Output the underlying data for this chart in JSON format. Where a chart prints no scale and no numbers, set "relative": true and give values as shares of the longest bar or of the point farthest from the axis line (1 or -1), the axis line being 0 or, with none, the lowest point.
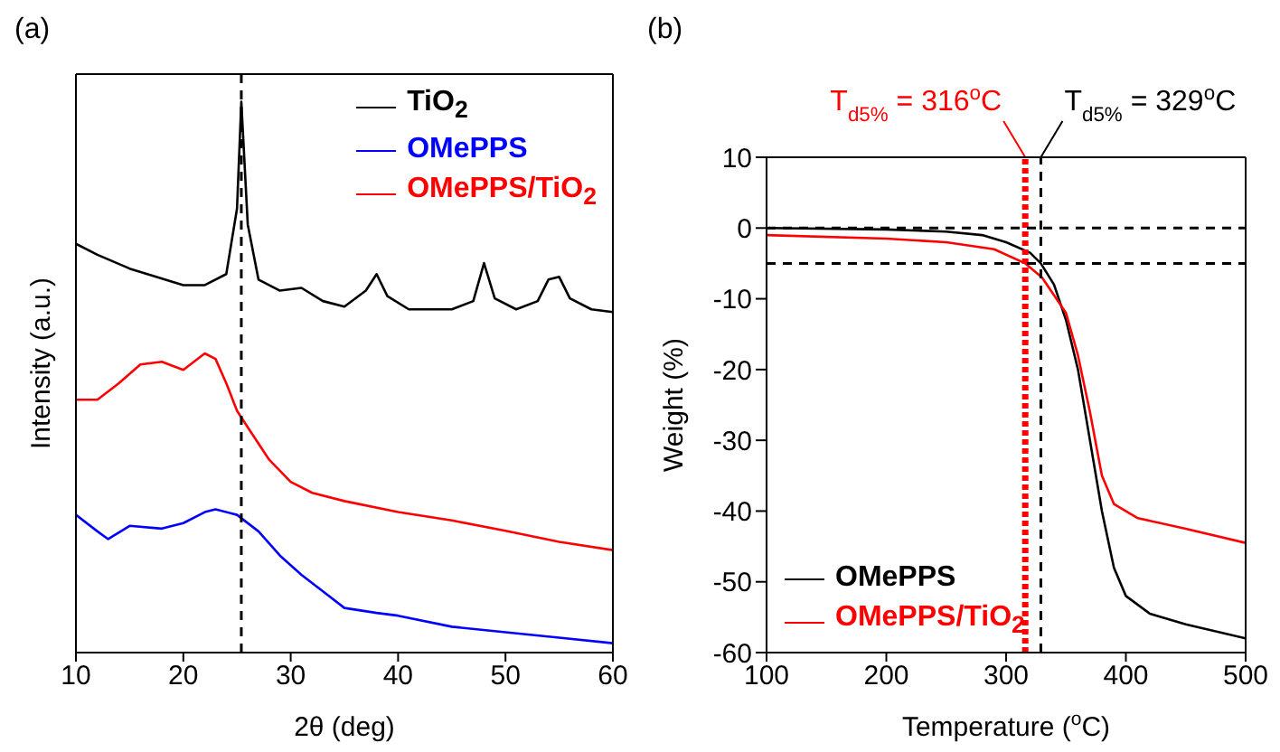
{
  "chart_data": [
    {
      "type": "line",
      "title": "(a)",
      "xlabel": "2θ (deg)",
      "ylabel": "Intensity (a.u.)",
      "relative": true,
      "xlim": [
        10,
        60
      ],
      "xticks": [
        10,
        20,
        30,
        40,
        50,
        60
      ],
      "legend": "top right",
      "grid": false,
      "ref_lines": [
        {
          "axis": "x",
          "value": 25.4,
          "color": "#000000",
          "line_style": "dashed"
        }
      ],
      "series": [
        {
          "name": "TiO$_{2}$",
          "color": "#000000",
          "x": [
            10,
            12,
            15,
            20,
            22,
            24,
            25,
            25.4,
            26,
            27,
            29,
            31,
            33,
            35,
            37,
            38,
            39,
            41,
            45,
            47,
            48,
            49,
            51,
            53,
            54,
            55,
            56,
            58,
            60
          ],
          "values": [
            0.742,
            0.722,
            0.697,
            0.667,
            0.667,
            0.687,
            0.806,
            1,
            0.777,
            0.677,
            0.657,
            0.662,
            0.638,
            0.628,
            0.657,
            0.687,
            0.647,
            0.623,
            0.623,
            0.638,
            0.707,
            0.643,
            0.623,
            0.638,
            0.677,
            0.682,
            0.643,
            0.623,
            0.618
          ]
        },
        {
          "name": "OMePPS",
          "color": "#0000ff",
          "x": [
            10,
            12,
            13,
            15,
            18,
            20,
            22,
            23,
            25,
            27,
            29,
            31,
            33,
            35,
            38,
            40,
            45,
            50,
            55,
            60
          ],
          "values": [
            0.25,
            0.22,
            0.206,
            0.23,
            0.225,
            0.235,
            0.255,
            0.26,
            0.25,
            0.22,
            0.176,
            0.141,
            0.111,
            0.081,
            0.072,
            0.067,
            0.047,
            0.037,
            0.027,
            0.017
          ]
        },
        {
          "name": "OMePPS/TiO$_{2}$",
          "color": "#ff0000",
          "x": [
            10,
            12,
            14,
            16,
            18,
            20,
            22,
            23,
            24,
            25,
            26,
            28,
            30,
            32,
            35,
            40,
            45,
            50,
            55,
            60
          ],
          "values": [
            0.459,
            0.459,
            0.489,
            0.523,
            0.528,
            0.513,
            0.543,
            0.533,
            0.489,
            0.439,
            0.409,
            0.35,
            0.31,
            0.29,
            0.275,
            0.255,
            0.24,
            0.221,
            0.201,
            0.186
          ]
        }
      ]
    },
    {
      "type": "line",
      "title": "(b)",
      "xlabel": "Temperature ($^{o}$C)",
      "ylabel": "Weight (%)",
      "xlim": [
        100,
        500
      ],
      "xticks": [
        100,
        200,
        300,
        400,
        500
      ],
      "ylim": [
        -60,
        10
      ],
      "yticks": [
        -60,
        -50,
        -40,
        -30,
        -20,
        -10,
        0,
        10
      ],
      "legend": "bottom left",
      "grid": false,
      "ref_lines": [
        {
          "axis": "x",
          "value": 316,
          "label": "T$_{d5%}$ = 316$^{o}$C",
          "color": "#ff0000",
          "line_style": "dotted"
        },
        {
          "axis": "x",
          "value": 329,
          "label": "T$_{d5%}$ = 329$^{o}$C",
          "color": "#000000",
          "line_style": "dashed"
        },
        {
          "axis": "y",
          "value": 0,
          "color": "#000000",
          "line_style": "dashed"
        },
        {
          "axis": "y",
          "value": -5,
          "color": "#000000",
          "line_style": "dashed"
        }
      ],
      "series": [
        {
          "name": "OMePPS",
          "color": "#000000",
          "x": [
            100,
            200,
            250,
            280,
            300,
            320,
            329,
            340,
            350,
            360,
            370,
            380,
            390,
            400,
            420,
            450,
            500
          ],
          "values": [
            0,
            -0.2,
            -0.5,
            -1,
            -2,
            -3.5,
            -5,
            -8,
            -13,
            -20,
            -30,
            -40,
            -48,
            -52,
            -54.5,
            -56,
            -58
          ]
        },
        {
          "name": "OMePPS/TiO$_{2}$",
          "color": "#ff0000",
          "x": [
            100,
            200,
            250,
            290,
            316,
            330,
            350,
            360,
            370,
            380,
            390,
            410,
            450,
            500
          ],
          "values": [
            -1,
            -1.5,
            -2,
            -3,
            -5,
            -7,
            -12,
            -18,
            -26,
            -35,
            -39,
            -41,
            -42.5,
            -44.5
          ]
        }
      ]
    }
  ]
}
